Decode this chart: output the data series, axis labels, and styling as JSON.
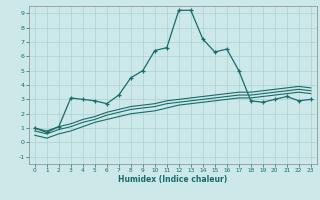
{
  "xlabel": "Humidex (Indice chaleur)",
  "xlim": [
    -0.5,
    23.5
  ],
  "ylim": [
    -1.5,
    9.5
  ],
  "xticks": [
    0,
    1,
    2,
    3,
    4,
    5,
    6,
    7,
    8,
    9,
    10,
    11,
    12,
    13,
    14,
    15,
    16,
    17,
    18,
    19,
    20,
    21,
    22,
    23
  ],
  "yticks": [
    -1,
    0,
    1,
    2,
    3,
    4,
    5,
    6,
    7,
    8,
    9
  ],
  "background_color": "#cce8e8",
  "grid_color": "#b0d4d4",
  "line_color": "#1a6b6b",
  "series1_x": [
    0,
    1,
    2,
    3,
    4,
    5,
    6,
    7,
    8,
    9,
    10,
    11,
    12,
    13,
    14,
    15,
    16,
    17,
    18,
    19,
    20,
    21,
    22,
    23
  ],
  "series1_y": [
    1.0,
    0.7,
    1.1,
    3.1,
    3.0,
    2.9,
    2.7,
    3.3,
    4.5,
    5.0,
    6.4,
    6.6,
    9.2,
    9.2,
    7.2,
    6.3,
    6.5,
    5.0,
    2.9,
    2.8,
    3.0,
    3.2,
    2.9,
    3.0
  ],
  "series2_x": [
    0,
    1,
    2,
    3,
    4,
    5,
    6,
    7,
    8,
    9,
    10,
    11,
    12,
    13,
    14,
    15,
    16,
    17,
    18,
    19,
    20,
    21,
    22,
    23
  ],
  "series2_y": [
    1.0,
    0.8,
    1.1,
    1.3,
    1.6,
    1.8,
    2.1,
    2.3,
    2.5,
    2.6,
    2.7,
    2.9,
    3.0,
    3.1,
    3.2,
    3.3,
    3.4,
    3.5,
    3.5,
    3.6,
    3.7,
    3.8,
    3.9,
    3.8
  ],
  "series3_x": [
    0,
    1,
    2,
    3,
    4,
    5,
    6,
    7,
    8,
    9,
    10,
    11,
    12,
    13,
    14,
    15,
    16,
    17,
    18,
    19,
    20,
    21,
    22,
    23
  ],
  "series3_y": [
    0.5,
    0.3,
    0.6,
    0.8,
    1.1,
    1.4,
    1.6,
    1.8,
    2.0,
    2.1,
    2.2,
    2.4,
    2.6,
    2.7,
    2.8,
    2.9,
    3.0,
    3.1,
    3.1,
    3.2,
    3.3,
    3.4,
    3.5,
    3.4
  ],
  "series4_x": [
    0,
    1,
    2,
    3,
    4,
    5,
    6,
    7,
    8,
    9,
    10,
    11,
    12,
    13,
    14,
    15,
    16,
    17,
    18,
    19,
    20,
    21,
    22,
    23
  ],
  "series4_y": [
    0.8,
    0.6,
    0.9,
    1.1,
    1.4,
    1.6,
    1.9,
    2.1,
    2.3,
    2.4,
    2.5,
    2.7,
    2.8,
    2.9,
    3.0,
    3.1,
    3.2,
    3.3,
    3.3,
    3.4,
    3.5,
    3.6,
    3.7,
    3.6
  ]
}
